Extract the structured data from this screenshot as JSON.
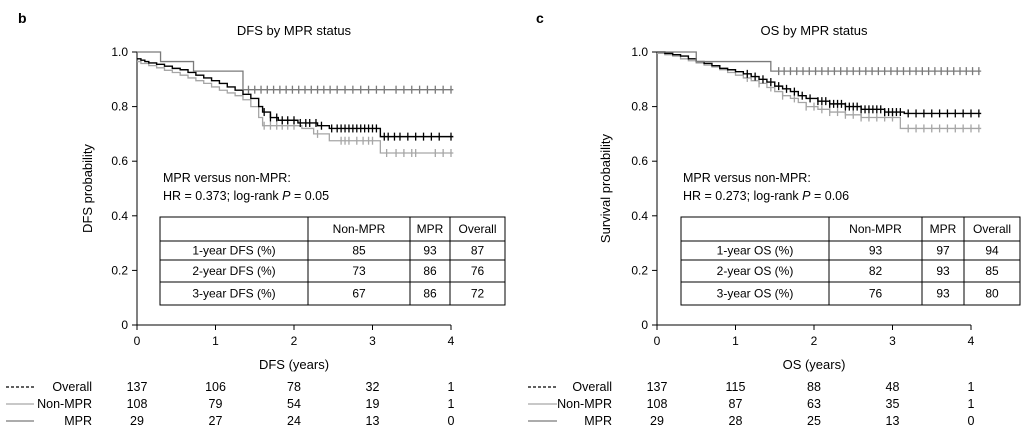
{
  "chart_data": [
    {
      "panel": "b",
      "type": "line",
      "subtype": "kaplan-meier",
      "title": "DFS by MPR status",
      "xlabel": "DFS (years)",
      "ylabel": "DFS probability",
      "xlim": [
        0,
        4
      ],
      "ylim": [
        0,
        1.0
      ],
      "xticks": [
        "0",
        "1",
        "2",
        "3",
        "4"
      ],
      "yticks": [
        "0",
        "0.2",
        "0.4",
        "0.6",
        "0.8",
        "1.0"
      ],
      "annotation": {
        "line1": "MPR versus non-MPR:",
        "line2_prefix": "HR = 0.373; log-rank ",
        "line2_italic": "P",
        "line2_suffix": " = 0.05"
      },
      "series": [
        {
          "name": "Overall",
          "color": "#000000",
          "style": "dashed-legend",
          "steps": [
            [
              0,
              0.975
            ],
            [
              0.05,
              0.97
            ],
            [
              0.1,
              0.965
            ],
            [
              0.15,
              0.96
            ],
            [
              0.25,
              0.955
            ],
            [
              0.35,
              0.948
            ],
            [
              0.45,
              0.94
            ],
            [
              0.55,
              0.935
            ],
            [
              0.65,
              0.925
            ],
            [
              0.75,
              0.915
            ],
            [
              0.85,
              0.905
            ],
            [
              0.95,
              0.895
            ],
            [
              1.05,
              0.885
            ],
            [
              1.15,
              0.872
            ],
            [
              1.25,
              0.86
            ],
            [
              1.35,
              0.845
            ],
            [
              1.45,
              0.83
            ],
            [
              1.55,
              0.8
            ],
            [
              1.6,
              0.78
            ],
            [
              1.7,
              0.76
            ],
            [
              1.8,
              0.75
            ],
            [
              2.05,
              0.74
            ],
            [
              2.3,
              0.73
            ],
            [
              2.45,
              0.72
            ],
            [
              3.1,
              0.69
            ],
            [
              4.03,
              0.69
            ]
          ],
          "censored": [
            1.62,
            1.7,
            1.78,
            1.85,
            1.92,
            2.0,
            2.08,
            2.15,
            2.2,
            2.28,
            2.35,
            2.48,
            2.55,
            2.6,
            2.65,
            2.7,
            2.75,
            2.8,
            2.85,
            2.9,
            2.95,
            3.0,
            3.05,
            3.15,
            3.2,
            3.28,
            3.35,
            3.45,
            3.55,
            3.65,
            3.75,
            3.85,
            4.0
          ]
        },
        {
          "name": "Non-MPR",
          "color": "#a6a6a6",
          "style": "solid",
          "steps": [
            [
              0,
              0.965
            ],
            [
              0.05,
              0.958
            ],
            [
              0.15,
              0.95
            ],
            [
              0.25,
              0.942
            ],
            [
              0.35,
              0.933
            ],
            [
              0.45,
              0.925
            ],
            [
              0.55,
              0.915
            ],
            [
              0.65,
              0.905
            ],
            [
              0.75,
              0.895
            ],
            [
              0.85,
              0.885
            ],
            [
              0.95,
              0.872
            ],
            [
              1.05,
              0.86
            ],
            [
              1.15,
              0.85
            ],
            [
              1.25,
              0.84
            ],
            [
              1.35,
              0.825
            ],
            [
              1.45,
              0.8
            ],
            [
              1.55,
              0.76
            ],
            [
              1.6,
              0.73
            ],
            [
              2.1,
              0.72
            ],
            [
              2.25,
              0.7
            ],
            [
              2.45,
              0.675
            ],
            [
              3.1,
              0.63
            ],
            [
              4.03,
              0.63
            ]
          ],
          "censored": [
            1.62,
            1.7,
            1.78,
            1.85,
            1.92,
            2.0,
            2.3,
            2.6,
            2.65,
            2.7,
            2.8,
            2.88,
            2.95,
            3.0,
            3.18,
            3.3,
            3.4,
            3.5,
            3.55,
            3.8,
            3.9,
            4.0
          ]
        },
        {
          "name": "MPR",
          "color": "#7a7a7a",
          "style": "solid",
          "steps": [
            [
              0,
              1.0
            ],
            [
              0.3,
              0.965
            ],
            [
              0.72,
              0.93
            ],
            [
              1.35,
              0.862
            ],
            [
              4.03,
              0.862
            ]
          ],
          "censored": [
            1.42,
            1.5,
            1.58,
            1.66,
            1.74,
            1.82,
            1.9,
            1.98,
            2.06,
            2.14,
            2.22,
            2.3,
            2.38,
            2.46,
            2.55,
            2.65,
            2.75,
            2.85,
            2.95,
            3.05,
            3.15,
            3.3,
            3.4,
            3.5,
            3.6,
            3.7,
            3.8,
            3.9,
            4.0
          ]
        }
      ],
      "table": {
        "headers": [
          "",
          "Non-MPR",
          "MPR",
          "Overall"
        ],
        "rows": [
          [
            "1-year DFS (%)",
            "85",
            "93",
            "87"
          ],
          [
            "2-year DFS (%)",
            "73",
            "86",
            "76"
          ],
          [
            "3-year DFS (%)",
            "67",
            "86",
            "72"
          ]
        ]
      },
      "risk_table": [
        {
          "label": "Overall",
          "values": [
            "137",
            "106",
            "78",
            "32",
            "1"
          ]
        },
        {
          "label": "Non-MPR",
          "values": [
            "108",
            "79",
            "54",
            "19",
            "1"
          ]
        },
        {
          "label": "MPR",
          "values": [
            "29",
            "27",
            "24",
            "13",
            "0"
          ]
        }
      ]
    },
    {
      "panel": "c",
      "type": "line",
      "subtype": "kaplan-meier",
      "title": "OS by MPR status",
      "xlabel": "OS (years)",
      "ylabel": "Survival probability",
      "xlim": [
        0,
        4
      ],
      "ylim": [
        0,
        1.0
      ],
      "xticks": [
        "0",
        "1",
        "2",
        "3",
        "4"
      ],
      "yticks": [
        "0",
        "0.2",
        "0.4",
        "0.6",
        "0.8",
        "1.0"
      ],
      "annotation": {
        "line1": "MPR versus non-MPR:",
        "line2_prefix": "HR = 0.273; log-rank ",
        "line2_italic": "P",
        "line2_suffix": " = 0.06"
      },
      "series": [
        {
          "name": "Overall",
          "color": "#000000",
          "style": "dashed-legend",
          "steps": [
            [
              0,
              1.0
            ],
            [
              0.1,
              0.995
            ],
            [
              0.2,
              0.99
            ],
            [
              0.3,
              0.985
            ],
            [
              0.4,
              0.975
            ],
            [
              0.5,
              0.965
            ],
            [
              0.6,
              0.958
            ],
            [
              0.7,
              0.95
            ],
            [
              0.8,
              0.94
            ],
            [
              0.9,
              0.935
            ],
            [
              1.0,
              0.928
            ],
            [
              1.1,
              0.92
            ],
            [
              1.2,
              0.91
            ],
            [
              1.3,
              0.9
            ],
            [
              1.4,
              0.89
            ],
            [
              1.5,
              0.875
            ],
            [
              1.6,
              0.865
            ],
            [
              1.7,
              0.855
            ],
            [
              1.8,
              0.84
            ],
            [
              1.9,
              0.83
            ],
            [
              2.05,
              0.82
            ],
            [
              2.2,
              0.81
            ],
            [
              2.4,
              0.8
            ],
            [
              2.6,
              0.79
            ],
            [
              2.9,
              0.78
            ],
            [
              3.15,
              0.775
            ],
            [
              4.13,
              0.775
            ]
          ],
          "censored": [
            1.15,
            1.25,
            1.35,
            1.45,
            1.55,
            1.65,
            1.75,
            1.85,
            1.95,
            2.05,
            2.1,
            2.15,
            2.2,
            2.25,
            2.3,
            2.35,
            2.4,
            2.45,
            2.5,
            2.55,
            2.6,
            2.65,
            2.7,
            2.75,
            2.8,
            2.85,
            2.9,
            2.95,
            3.0,
            3.05,
            3.1,
            3.2,
            3.3,
            3.4,
            3.5,
            3.6,
            3.7,
            3.8,
            3.9,
            4.0,
            4.1
          ]
        },
        {
          "name": "Non-MPR",
          "color": "#a6a6a6",
          "style": "solid",
          "steps": [
            [
              0,
              0.995
            ],
            [
              0.1,
              0.99
            ],
            [
              0.2,
              0.985
            ],
            [
              0.3,
              0.975
            ],
            [
              0.4,
              0.968
            ],
            [
              0.5,
              0.96
            ],
            [
              0.6,
              0.952
            ],
            [
              0.7,
              0.945
            ],
            [
              0.8,
              0.935
            ],
            [
              0.9,
              0.925
            ],
            [
              1.0,
              0.915
            ],
            [
              1.1,
              0.905
            ],
            [
              1.2,
              0.895
            ],
            [
              1.3,
              0.885
            ],
            [
              1.4,
              0.87
            ],
            [
              1.5,
              0.855
            ],
            [
              1.6,
              0.84
            ],
            [
              1.7,
              0.83
            ],
            [
              1.8,
              0.815
            ],
            [
              1.9,
              0.8
            ],
            [
              2.05,
              0.79
            ],
            [
              2.2,
              0.78
            ],
            [
              2.4,
              0.77
            ],
            [
              2.6,
              0.76
            ],
            [
              3.1,
              0.72
            ],
            [
              4.13,
              0.72
            ]
          ],
          "censored": [
            1.15,
            1.3,
            1.45,
            1.6,
            1.75,
            1.9,
            2.0,
            2.1,
            2.2,
            2.3,
            2.4,
            2.5,
            2.6,
            2.7,
            2.8,
            2.9,
            3.0,
            3.2,
            3.3,
            3.4,
            3.5,
            3.6,
            3.7,
            3.8,
            3.9,
            4.0,
            4.1
          ]
        },
        {
          "name": "MPR",
          "color": "#7a7a7a",
          "style": "solid",
          "steps": [
            [
              0,
              1.0
            ],
            [
              0.5,
              0.965
            ],
            [
              1.45,
              0.93
            ],
            [
              4.13,
              0.93
            ]
          ],
          "censored": [
            1.55,
            1.62,
            1.7,
            1.78,
            1.86,
            1.94,
            2.02,
            2.1,
            2.18,
            2.26,
            2.34,
            2.42,
            2.5,
            2.58,
            2.66,
            2.74,
            2.82,
            2.9,
            2.98,
            3.06,
            3.14,
            3.22,
            3.3,
            3.38,
            3.46,
            3.54,
            3.62,
            3.7,
            3.78,
            3.86,
            3.94,
            4.02,
            4.1
          ]
        }
      ],
      "table": {
        "headers": [
          "",
          "Non-MPR",
          "MPR",
          "Overall"
        ],
        "rows": [
          [
            "1-year OS (%)",
            "93",
            "97",
            "94"
          ],
          [
            "2-year OS (%)",
            "82",
            "93",
            "85"
          ],
          [
            "3-year OS (%)",
            "76",
            "93",
            "80"
          ]
        ]
      },
      "risk_table": [
        {
          "label": "Overall",
          "values": [
            "137",
            "115",
            "88",
            "48",
            "1"
          ]
        },
        {
          "label": "Non-MPR",
          "values": [
            "108",
            "87",
            "63",
            "35",
            "1"
          ]
        },
        {
          "label": "MPR",
          "values": [
            "29",
            "28",
            "25",
            "13",
            "0"
          ]
        }
      ]
    }
  ]
}
